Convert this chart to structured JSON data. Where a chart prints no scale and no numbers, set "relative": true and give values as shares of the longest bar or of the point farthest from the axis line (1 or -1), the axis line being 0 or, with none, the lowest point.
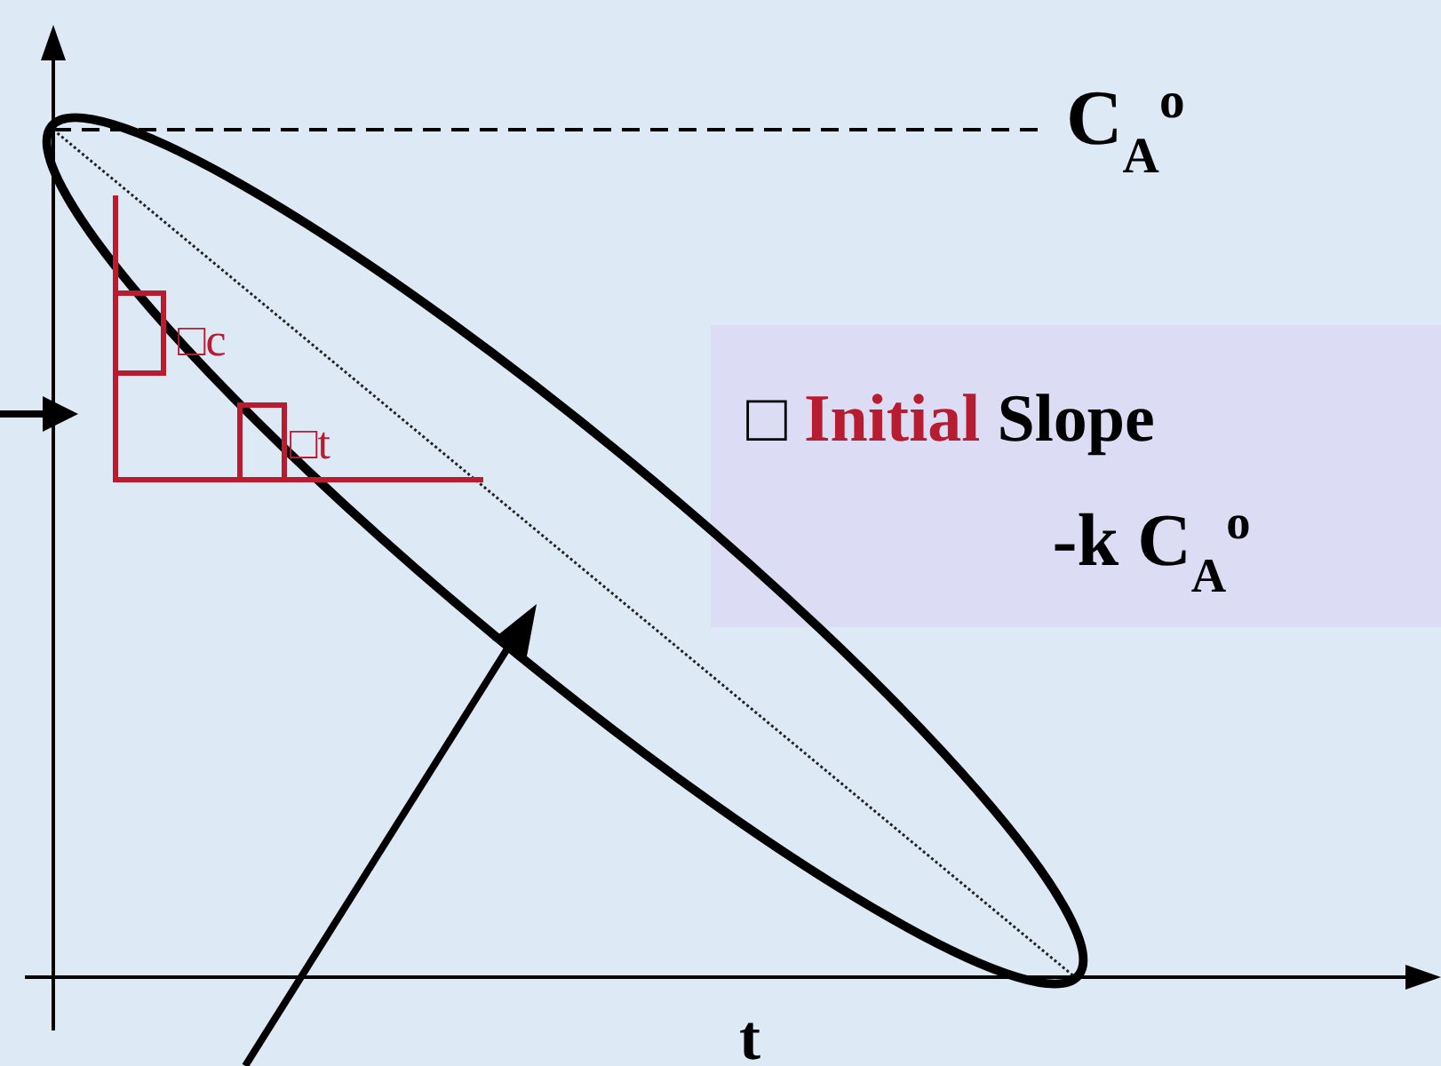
{
  "chart_data": {
    "type": "line",
    "relative": true,
    "xlabel": "t",
    "categories": [
      null,
      null,
      null,
      null,
      null,
      null
    ],
    "series": [
      {
        "color": "#222222",
        "values": [
          1,
          0.75,
          0.5,
          0.25,
          0,
          null
        ]
      }
    ],
    "ref_lines": [
      {
        "axis": "y",
        "value": 1,
        "label": "C$_{A}$$^{o}$",
        "line_style": "dashed",
        "color": "#000000"
      }
    ],
    "annotations": [
      "□ Initial Slope",
      "-k C$_{A}$$^{o}$",
      "□c",
      "□t"
    ],
    "line_style": "dotted",
    "grid": false
  }
}
